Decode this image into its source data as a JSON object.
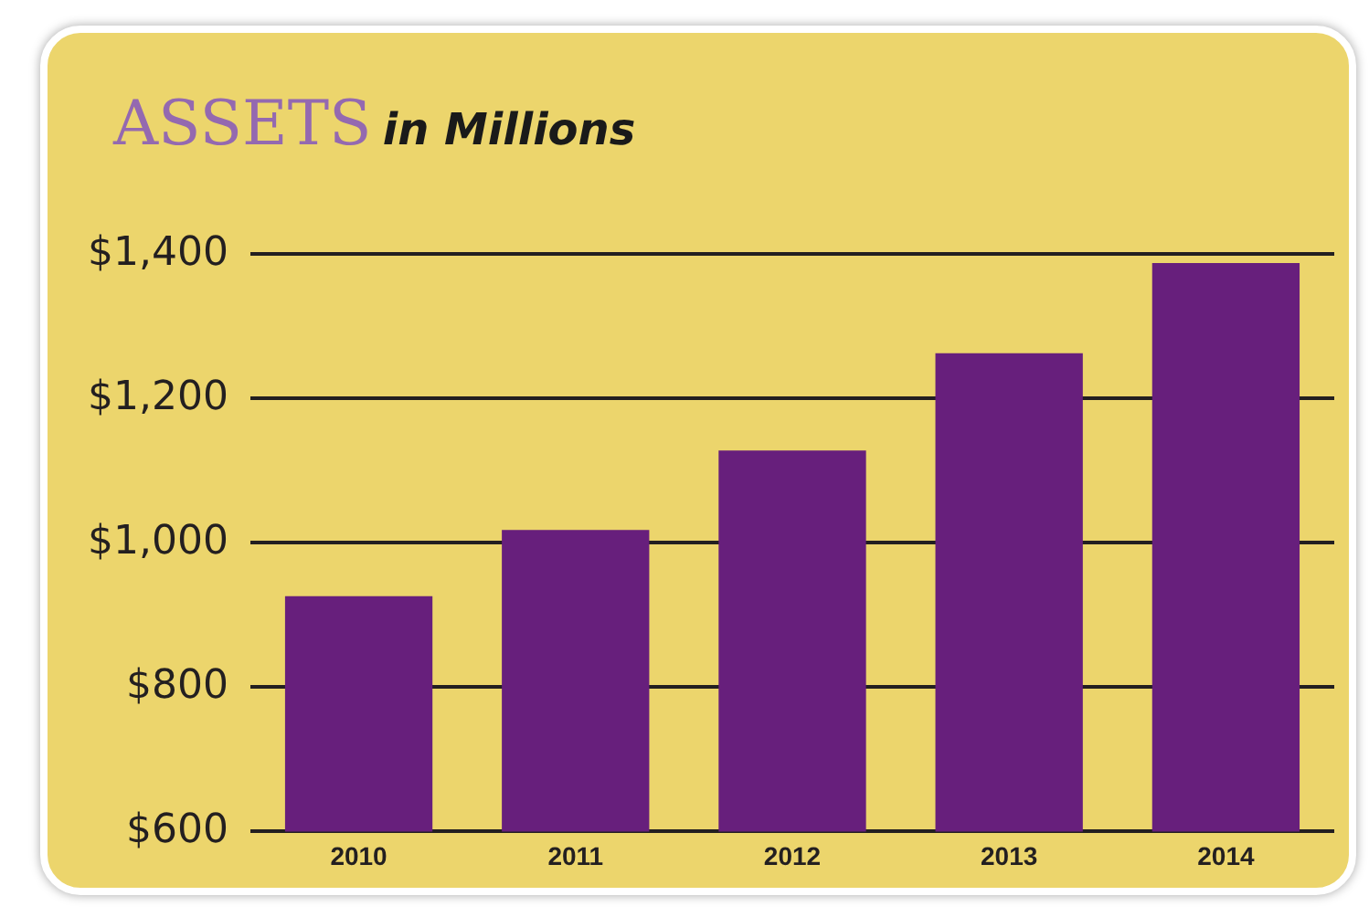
{
  "chart_data": {
    "type": "bar",
    "title": "ASSETS",
    "subtitle": "in Millions",
    "categories": [
      "2010",
      "2011",
      "2012",
      "2013",
      "2014"
    ],
    "values": [
      926,
      1018,
      1128,
      1263,
      1388
    ],
    "color": "#671f7c",
    "ylim": [
      600,
      1400
    ],
    "yticks": [
      {
        "value": 600,
        "label": "$600"
      },
      {
        "value": 800,
        "label": "$800"
      },
      {
        "value": 1000,
        "label": "$1,000"
      },
      {
        "value": 1200,
        "label": "$1,200"
      },
      {
        "value": 1400,
        "label": "$1,400"
      }
    ],
    "grid": "y",
    "legend": false
  }
}
